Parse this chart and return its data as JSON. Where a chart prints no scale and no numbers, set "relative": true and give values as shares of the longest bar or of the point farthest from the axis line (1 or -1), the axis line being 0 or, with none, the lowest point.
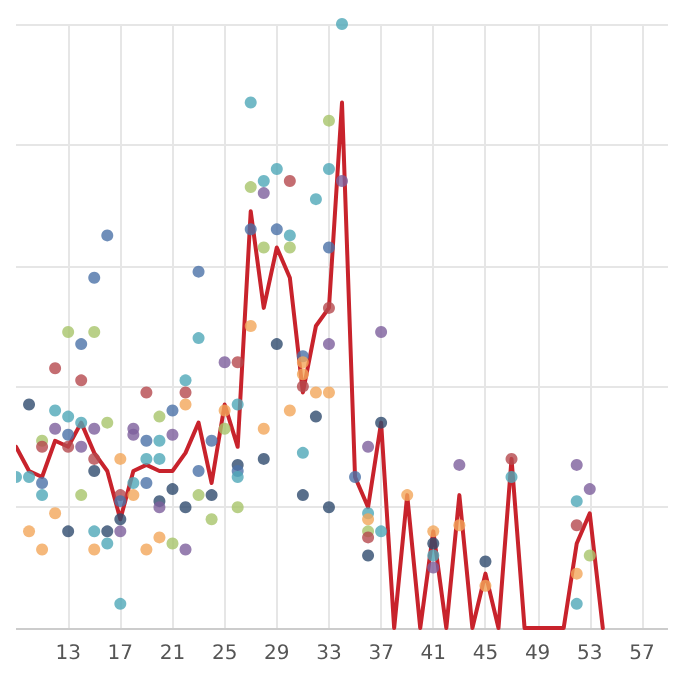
{
  "chart_data": {
    "type": "scatter",
    "relative": true,
    "xlim": [
      9,
      59
    ],
    "xticks": [
      13,
      17,
      21,
      25,
      29,
      33,
      37,
      41,
      45,
      49,
      53,
      57
    ],
    "grid": true,
    "series": [
      {
        "type": "line",
        "color": "#c8232c",
        "marker": "none",
        "line_style": "solid",
        "x": [
          9,
          10,
          11,
          12,
          13,
          14,
          15,
          16,
          17,
          18,
          19,
          20,
          21,
          22,
          23,
          24,
          25,
          26,
          27,
          28,
          29,
          30,
          31,
          32,
          33,
          34,
          35,
          36,
          37,
          38,
          39,
          40,
          41,
          42,
          43,
          44,
          45,
          46,
          47,
          48,
          49,
          50,
          51,
          52,
          53,
          54
        ],
        "values": [
          0.3,
          0.26,
          0.25,
          0.31,
          0.3,
          0.34,
          0.29,
          0.26,
          0.18,
          0.26,
          0.27,
          0.26,
          0.26,
          0.29,
          0.34,
          0.24,
          0.37,
          0.3,
          0.69,
          0.53,
          0.63,
          0.58,
          0.39,
          0.5,
          0.53,
          0.87,
          0.25,
          0.2,
          0.34,
          0,
          0.22,
          0,
          0.16,
          0,
          0.22,
          0,
          0.09,
          0,
          0.28,
          0,
          0,
          0,
          0,
          0.14,
          0.19,
          0
        ]
      },
      {
        "type": "scatter",
        "marker": "circle",
        "x": [
          34,
          27,
          33,
          29,
          27,
          28,
          30,
          28,
          33,
          32,
          34,
          16,
          15,
          23,
          27,
          29,
          30,
          28,
          30,
          33,
          33,
          27,
          13,
          15,
          23,
          37,
          14,
          12,
          14,
          10,
          12,
          13,
          14,
          16,
          12,
          13,
          11,
          11,
          13,
          14,
          15,
          15,
          17,
          19,
          18,
          18,
          19,
          20,
          20,
          19,
          20,
          21,
          21,
          22,
          22,
          22,
          24,
          23,
          23,
          24,
          24,
          25,
          25,
          25,
          26,
          26,
          26,
          26,
          26,
          26,
          28,
          28,
          29,
          30,
          31,
          31,
          31,
          31,
          31,
          31,
          32,
          32,
          33,
          33,
          33,
          9,
          10,
          11,
          11,
          12,
          10,
          11,
          13,
          14,
          15,
          15,
          15,
          16,
          16,
          17,
          17,
          17,
          17,
          17,
          18,
          18,
          19,
          19,
          20,
          20,
          20,
          21,
          21,
          22,
          22,
          37,
          36,
          35,
          36,
          36,
          36,
          36,
          36,
          37,
          39,
          41,
          41,
          41,
          41,
          43,
          43,
          45,
          45,
          47,
          47,
          52,
          52,
          52,
          52,
          52,
          53,
          53
        ],
        "values": [
          1.0,
          0.87,
          0.84,
          0.76,
          0.73,
          0.74,
          0.74,
          0.72,
          0.76,
          0.71,
          0.74,
          0.65,
          0.58,
          0.59,
          0.66,
          0.66,
          0.65,
          0.63,
          0.63,
          0.63,
          0.53,
          0.5,
          0.49,
          0.49,
          0.48,
          0.49,
          0.47,
          0.43,
          0.41,
          0.37,
          0.36,
          0.35,
          0.34,
          0.34,
          0.33,
          0.32,
          0.31,
          0.3,
          0.3,
          0.3,
          0.33,
          0.28,
          0.28,
          0.39,
          0.33,
          0.32,
          0.31,
          0.35,
          0.31,
          0.28,
          0.28,
          0.32,
          0.36,
          0.41,
          0.39,
          0.37,
          0.31,
          0.26,
          0.22,
          0.22,
          0.18,
          0.44,
          0.36,
          0.33,
          0.44,
          0.37,
          0.27,
          0.26,
          0.25,
          0.2,
          0.33,
          0.28,
          0.47,
          0.36,
          0.45,
          0.44,
          0.42,
          0.4,
          0.29,
          0.22,
          0.39,
          0.35,
          0.39,
          0.2,
          0.47,
          0.25,
          0.25,
          0.24,
          0.22,
          0.19,
          0.16,
          0.13,
          0.16,
          0.22,
          0.26,
          0.16,
          0.13,
          0.16,
          0.14,
          0.22,
          0.21,
          0.18,
          0.16,
          0.04,
          0.24,
          0.22,
          0.24,
          0.13,
          0.21,
          0.2,
          0.15,
          0.23,
          0.14,
          0.2,
          0.13,
          0.34,
          0.3,
          0.25,
          0.19,
          0.18,
          0.16,
          0.15,
          0.12,
          0.16,
          0.22,
          0.16,
          0.14,
          0.12,
          0.1,
          0.27,
          0.17,
          0.11,
          0.07,
          0.28,
          0.25,
          0.27,
          0.21,
          0.17,
          0.09,
          0.04,
          0.23,
          0.12
        ],
        "colors": [
          "#4fa7b8",
          "#4fa7b8",
          "#a8c46a",
          "#4fa7b8",
          "#a8c46a",
          "#4fa7b8",
          "#b5484e",
          "#7d5f9c",
          "#4fa7b8",
          "#4fa7b8",
          "#7d5f9c",
          "#4b72a8",
          "#4b72a8",
          "#4b72a8",
          "#4b72a8",
          "#4b72a8",
          "#4fa7b8",
          "#a8c46a",
          "#a8c46a",
          "#4b72a8",
          "#b5484e",
          "#f2a65a",
          "#a8c46a",
          "#a8c46a",
          "#4fa7b8",
          "#7d5f9c",
          "#4b72a8",
          "#b5484e",
          "#b5484e",
          "#2f4b6e",
          "#4fa7b8",
          "#4fa7b8",
          "#4fa7b8",
          "#a8c46a",
          "#7d5f9c",
          "#4b72a8",
          "#a8c46a",
          "#b5484e",
          "#b5484e",
          "#7d5f9c",
          "#7d5f9c",
          "#b5484e",
          "#f2a65a",
          "#b5484e",
          "#7d5f9c",
          "#7d5f9c",
          "#4b72a8",
          "#a8c46a",
          "#4fa7b8",
          "#4fa7b8",
          "#4fa7b8",
          "#7d5f9c",
          "#4b72a8",
          "#4fa7b8",
          "#b5484e",
          "#f2a65a",
          "#4b72a8",
          "#4b72a8",
          "#a8c46a",
          "#2f4b6e",
          "#a8c46a",
          "#7d5f9c",
          "#f2a65a",
          "#a8c46a",
          "#b5484e",
          "#4fa7b8",
          "#2f4b6e",
          "#4b72a8",
          "#4fa7b8",
          "#a8c46a",
          "#f2a65a",
          "#2f4b6e",
          "#2f4b6e",
          "#f2a65a",
          "#4b72a8",
          "#f2a65a",
          "#f2a65a",
          "#b5484e",
          "#4fa7b8",
          "#2f4b6e",
          "#f2a65a",
          "#2f4b6e",
          "#f2a65a",
          "#2f4b6e",
          "#7d5f9c",
          "#4fa7b8",
          "#4fa7b8",
          "#4b72a8",
          "#4fa7b8",
          "#f2a65a",
          "#f2a65a",
          "#f2a65a",
          "#2f4b6e",
          "#a8c46a",
          "#2f4b6e",
          "#4fa7b8",
          "#f2a65a",
          "#2f4b6e",
          "#4fa7b8",
          "#b5484e",
          "#4b72a8",
          "#2f4b6e",
          "#7d5f9c",
          "#4fa7b8",
          "#4fa7b8",
          "#f2a65a",
          "#4b72a8",
          "#f2a65a",
          "#2f4b6e",
          "#7d5f9c",
          "#f2a65a",
          "#2f4b6e",
          "#a8c46a",
          "#2f4b6e",
          "#7d5f9c",
          "#2f4b6e",
          "#7d5f9c",
          "#4b72a8",
          "#4fa7b8",
          "#f2a65a",
          "#a8c46a",
          "#b5484e",
          "#2f4b6e",
          "#4fa7b8",
          "#f2a65a",
          "#f2a65a",
          "#2f4b6e",
          "#4fa7b8",
          "#7d5f9c",
          "#7d5f9c",
          "#f2a65a",
          "#2f4b6e",
          "#f2a65a",
          "#b5484e",
          "#4fa7b8",
          "#7d5f9c",
          "#4fa7b8",
          "#b5484e",
          "#f2a65a",
          "#4fa7b8",
          "#7d5f9c",
          "#a8c46a"
        ]
      }
    ]
  }
}
